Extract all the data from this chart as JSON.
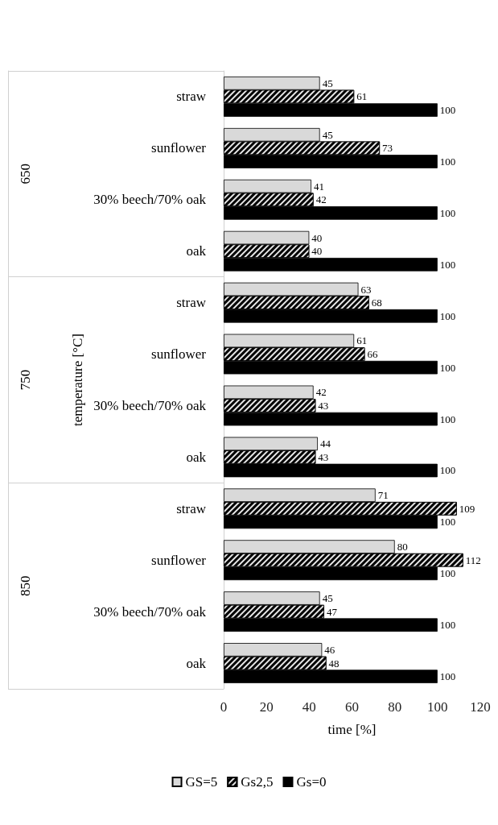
{
  "chart_data": {
    "type": "bar",
    "orientation": "horizontal",
    "xlabel": "time [%]",
    "ylabel": "temperature [°C]",
    "categories": [
      "straw",
      "sunflower",
      "30% beech/70% oak",
      "oak",
      "straw",
      "sunflower",
      "30% beech/70% oak",
      "oak",
      "straw",
      "sunflower",
      "30% beech/70% oak",
      "oak"
    ],
    "annotations": [
      "650",
      "750",
      "850"
    ],
    "series": [
      {
        "name": "GS=5",
        "color": "#d9d9d9",
        "values": [
          45,
          45,
          41,
          40,
          63,
          61,
          42,
          44,
          71,
          80,
          45,
          46
        ]
      },
      {
        "name": "Gs2,5",
        "color": "#000000",
        "values": [
          61,
          73,
          42,
          40,
          68,
          66,
          43,
          43,
          109,
          112,
          47,
          48
        ]
      },
      {
        "name": "Gs=0",
        "color": "#000000",
        "values": [
          100,
          100,
          100,
          100,
          100,
          100,
          100,
          100,
          100,
          100,
          100,
          100
        ]
      }
    ],
    "xlim": [
      0,
      120
    ],
    "xticks": [
      0,
      20,
      40,
      60,
      80,
      100,
      120
    ],
    "data_labels": true,
    "grid": false,
    "legend": "bottom"
  }
}
